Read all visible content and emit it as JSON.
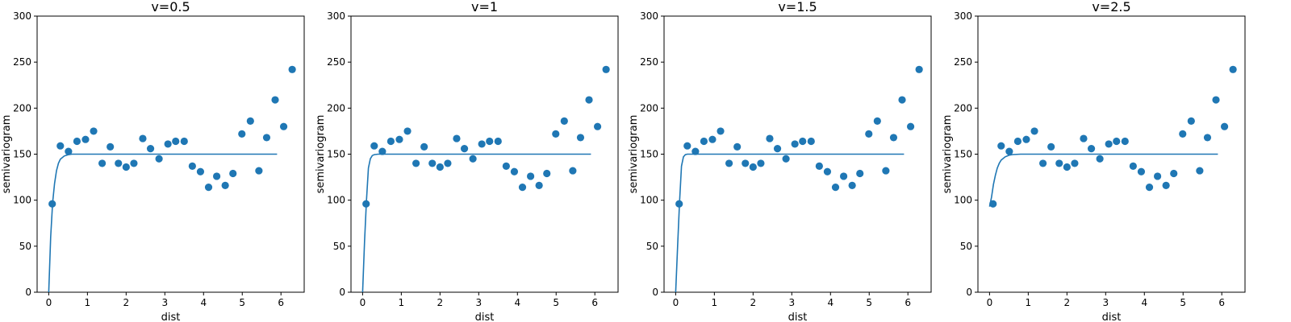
{
  "chart_data": [
    {
      "type": "scatter",
      "title": "v=0.5",
      "xlabel": "dist",
      "ylabel": "semivariogram",
      "xlim": [
        -0.3,
        6.6
      ],
      "ylim": [
        0,
        300
      ],
      "xticks": [
        "0",
        "1",
        "2",
        "3",
        "4",
        "5",
        "6"
      ],
      "yticks": [
        "0",
        "50",
        "100",
        "150",
        "200",
        "250",
        "300"
      ],
      "grid": false,
      "points": {
        "x": [
          0.09,
          0.3,
          0.51,
          0.73,
          0.95,
          1.16,
          1.38,
          1.59,
          1.8,
          2.0,
          2.2,
          2.43,
          2.63,
          2.85,
          3.08,
          3.28,
          3.5,
          3.71,
          3.92,
          4.13,
          4.34,
          4.56,
          4.76,
          4.99,
          5.21,
          5.43,
          5.63,
          5.85,
          6.07,
          6.29
        ],
        "y": [
          96,
          159,
          153,
          164,
          166,
          175,
          140,
          158,
          140,
          136,
          140,
          167,
          156,
          145,
          161,
          164,
          164,
          137,
          131,
          114,
          126,
          116,
          129,
          172,
          186,
          132,
          168,
          209,
          180,
          242
        ]
      },
      "model_line": {
        "x": [
          0,
          0.05,
          0.1,
          0.15,
          0.2,
          0.25,
          0.3,
          0.4,
          0.5,
          0.6,
          0.8,
          1.0,
          1.5,
          2.0,
          3.0,
          4.0,
          5.0,
          5.9
        ],
        "y": [
          0,
          60,
          97,
          118,
          132,
          140,
          144.5,
          148,
          149.4,
          150,
          150,
          150,
          150,
          150,
          150,
          150,
          150,
          150
        ]
      }
    },
    {
      "type": "scatter",
      "title": "v=1",
      "xlabel": "dist",
      "ylabel": "semivariogram",
      "xlim": [
        -0.3,
        6.6
      ],
      "ylim": [
        0,
        300
      ],
      "xticks": [
        "0",
        "1",
        "2",
        "3",
        "4",
        "5",
        "6"
      ],
      "yticks": [
        "0",
        "50",
        "100",
        "150",
        "200",
        "250",
        "300"
      ],
      "grid": false,
      "points": {
        "x": [
          0.09,
          0.3,
          0.51,
          0.73,
          0.95,
          1.16,
          1.38,
          1.59,
          1.8,
          2.0,
          2.2,
          2.43,
          2.63,
          2.85,
          3.08,
          3.28,
          3.5,
          3.71,
          3.92,
          4.13,
          4.34,
          4.56,
          4.76,
          4.99,
          5.21,
          5.43,
          5.63,
          5.85,
          6.07,
          6.29
        ],
        "y": [
          96,
          159,
          153,
          164,
          166,
          175,
          140,
          158,
          140,
          136,
          140,
          167,
          156,
          145,
          161,
          164,
          164,
          137,
          131,
          114,
          126,
          116,
          129,
          172,
          186,
          132,
          168,
          209,
          180,
          242
        ]
      },
      "model_line": {
        "x": [
          0,
          0.05,
          0.1,
          0.15,
          0.2,
          0.25,
          0.3,
          0.4,
          0.5,
          0.6,
          0.8,
          1.0,
          1.5,
          2.0,
          3.0,
          4.0,
          5.0,
          5.9
        ],
        "y": [
          0,
          55,
          100,
          135,
          145,
          148.5,
          149.5,
          150,
          150,
          150,
          150,
          150,
          150,
          150,
          150,
          150,
          150,
          150
        ]
      }
    },
    {
      "type": "scatter",
      "title": "v=1.5",
      "xlabel": "dist",
      "ylabel": "semivariogram",
      "xlim": [
        -0.3,
        6.6
      ],
      "ylim": [
        0,
        300
      ],
      "xticks": [
        "0",
        "1",
        "2",
        "3",
        "4",
        "5",
        "6"
      ],
      "yticks": [
        "0",
        "50",
        "100",
        "150",
        "200",
        "250",
        "300"
      ],
      "grid": false,
      "points": {
        "x": [
          0.09,
          0.3,
          0.51,
          0.73,
          0.95,
          1.16,
          1.38,
          1.59,
          1.8,
          2.0,
          2.2,
          2.43,
          2.63,
          2.85,
          3.08,
          3.28,
          3.5,
          3.71,
          3.92,
          4.13,
          4.34,
          4.56,
          4.76,
          4.99,
          5.21,
          5.43,
          5.63,
          5.85,
          6.07,
          6.29
        ],
        "y": [
          96,
          159,
          153,
          164,
          166,
          175,
          140,
          158,
          140,
          136,
          140,
          167,
          156,
          145,
          161,
          164,
          164,
          137,
          131,
          114,
          126,
          116,
          129,
          172,
          186,
          132,
          168,
          209,
          180,
          242
        ]
      },
      "model_line": {
        "x": [
          0,
          0.05,
          0.1,
          0.15,
          0.2,
          0.25,
          0.3,
          0.4,
          0.5,
          0.6,
          0.8,
          1.0,
          1.5,
          2.0,
          3.0,
          4.0,
          5.0,
          5.9
        ],
        "y": [
          0,
          50,
          98,
          137,
          147,
          149.5,
          150,
          150,
          150,
          150,
          150,
          150,
          150,
          150,
          150,
          150,
          150,
          150
        ]
      }
    },
    {
      "type": "scatter",
      "title": "v=2.5",
      "xlabel": "dist",
      "ylabel": "semivariogram",
      "xlim": [
        -0.3,
        6.6
      ],
      "ylim": [
        0,
        300
      ],
      "xticks": [
        "0",
        "1",
        "2",
        "3",
        "4",
        "5",
        "6"
      ],
      "yticks": [
        "0",
        "50",
        "100",
        "150",
        "200",
        "250",
        "300"
      ],
      "grid": false,
      "points": {
        "x": [
          0.09,
          0.3,
          0.51,
          0.73,
          0.95,
          1.16,
          1.38,
          1.59,
          1.8,
          2.0,
          2.2,
          2.43,
          2.63,
          2.85,
          3.08,
          3.28,
          3.5,
          3.71,
          3.92,
          4.13,
          4.34,
          4.56,
          4.76,
          4.99,
          5.21,
          5.43,
          5.63,
          5.85,
          6.07,
          6.29
        ],
        "y": [
          96,
          159,
          153,
          164,
          166,
          175,
          140,
          158,
          140,
          136,
          140,
          167,
          156,
          145,
          161,
          164,
          164,
          137,
          131,
          114,
          126,
          116,
          129,
          172,
          186,
          132,
          168,
          209,
          180,
          242
        ]
      },
      "model_line": {
        "x": [
          0,
          0.05,
          0.1,
          0.15,
          0.2,
          0.25,
          0.3,
          0.4,
          0.5,
          0.6,
          0.8,
          1.0,
          1.5,
          2.0,
          3.0,
          4.0,
          5.0,
          5.9
        ],
        "y": [
          93,
          103,
          117,
          127,
          135,
          140,
          143.5,
          147,
          148.8,
          149.6,
          150,
          150,
          150,
          150,
          150,
          150,
          150,
          150
        ]
      }
    }
  ],
  "colors": {
    "series": "#1f77b4",
    "axis": "#000000"
  }
}
